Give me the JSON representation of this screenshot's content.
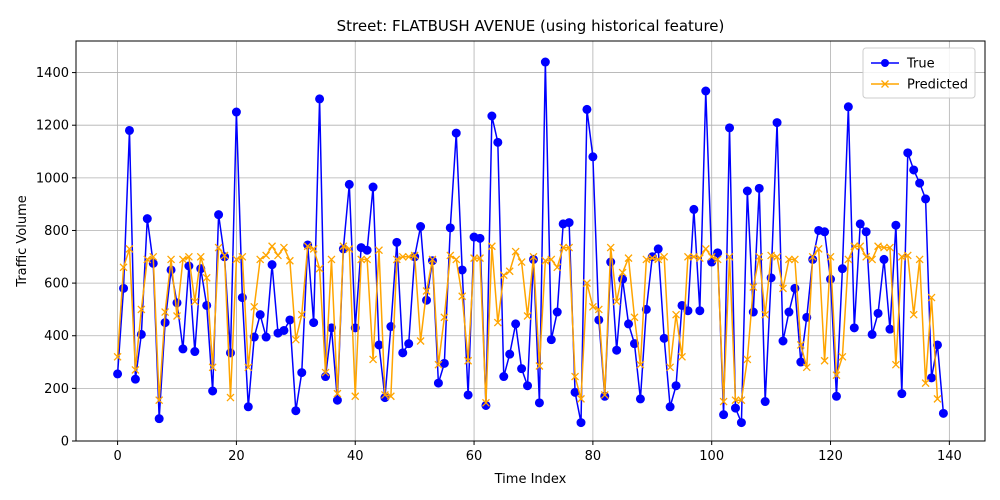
{
  "chart_data": {
    "type": "line",
    "title": "Street: FLATBUSH AVENUE (using historical feature)",
    "xlabel": "Time Index",
    "ylabel": "Traffic Volume",
    "xlim": [
      -7,
      146
    ],
    "ylim": [
      0,
      1520
    ],
    "xticks": [
      0,
      20,
      40,
      60,
      80,
      100,
      120,
      140
    ],
    "yticks": [
      0,
      200,
      400,
      600,
      800,
      1000,
      1200,
      1400
    ],
    "grid": true,
    "legend_position": "top-right",
    "series": [
      {
        "name": "True",
        "color": "#0000ff",
        "marker": "circle",
        "values": [
          255,
          580,
          1180,
          235,
          405,
          845,
          675,
          85,
          450,
          650,
          525,
          350,
          665,
          340,
          655,
          515,
          190,
          860,
          700,
          335,
          1250,
          545,
          130,
          395,
          480,
          395,
          670,
          410,
          420,
          460,
          115,
          260,
          745,
          450,
          1300,
          245,
          430,
          155,
          730,
          975,
          430,
          735,
          725,
          965,
          365,
          165,
          435,
          755,
          335,
          370,
          700,
          815,
          535,
          685,
          220,
          295,
          810,
          1170,
          650,
          175,
          775,
          770,
          135,
          1235,
          1135,
          245,
          330,
          445,
          275,
          210,
          690,
          145,
          1440,
          385,
          490,
          825,
          830,
          185,
          70,
          1260,
          1080,
          460,
          170,
          680,
          345,
          615,
          445,
          370,
          160,
          500,
          700,
          730,
          390,
          130,
          210,
          515,
          495,
          880,
          495,
          1330,
          680,
          715,
          100,
          1190,
          125,
          70,
          950,
          490,
          960,
          150,
          620,
          1210,
          380,
          490,
          580,
          300,
          470,
          690,
          800,
          795,
          615,
          170,
          655,
          1270,
          430,
          825,
          795,
          405,
          485,
          690,
          425,
          820,
          180,
          1095,
          1030,
          980,
          920,
          240,
          365,
          105
        ]
      },
      {
        "name": "Predicted",
        "color": "#ffa500",
        "marker": "x",
        "values": [
          320,
          660,
          730,
          270,
          500,
          690,
          700,
          155,
          490,
          690,
          475,
          690,
          700,
          530,
          700,
          620,
          280,
          735,
          705,
          165,
          690,
          700,
          280,
          510,
          690,
          705,
          740,
          705,
          735,
          685,
          385,
          480,
          740,
          730,
          655,
          260,
          690,
          180,
          740,
          730,
          170,
          690,
          690,
          310,
          725,
          175,
          170,
          690,
          700,
          700,
          705,
          380,
          570,
          690,
          290,
          470,
          705,
          690,
          550,
          305,
          695,
          695,
          145,
          740,
          450,
          630,
          645,
          720,
          680,
          475,
          700,
          285,
          685,
          690,
          660,
          735,
          735,
          245,
          160,
          600,
          510,
          500,
          175,
          735,
          530,
          640,
          695,
          470,
          290,
          690,
          695,
          690,
          700,
          280,
          480,
          320,
          700,
          700,
          695,
          730,
          700,
          690,
          150,
          700,
          155,
          155,
          310,
          585,
          700,
          480,
          705,
          700,
          580,
          690,
          690,
          365,
          280,
          700,
          730,
          305,
          700,
          250,
          320,
          690,
          740,
          740,
          700,
          690,
          740,
          735,
          735,
          290,
          700,
          705,
          480,
          690,
          220,
          545,
          160
        ]
      }
    ]
  }
}
